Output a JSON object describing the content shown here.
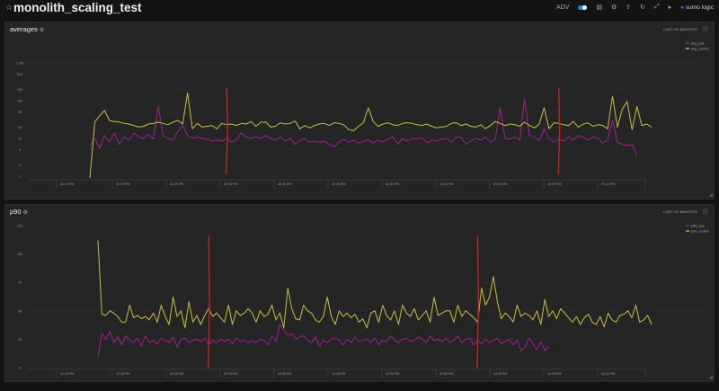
{
  "dashboard": {
    "title": "monolith_scaling_test",
    "favorite_icon": "star-icon",
    "toolbar": {
      "toggle_label": "ADV",
      "items": [
        "layout-icon",
        "gear-icon",
        "share-icon",
        "refresh-icon",
        "fullscreen-icon",
        "live-icon"
      ],
      "brand": "sumo logic"
    }
  },
  "panels": [
    {
      "title": "averages",
      "range_label": "LAST 60 MINUTES",
      "chart_data": {
        "type": "line",
        "y_scale": "log",
        "y_ticks": [
          "1",
          "2",
          "5",
          "10",
          "20",
          "50",
          "100",
          "200",
          "500",
          "1,000"
        ],
        "x_ticks": [
          "02:20 PM",
          "02:25 PM",
          "02:30 PM",
          "02:35 PM",
          "02:40 PM",
          "02:45 PM",
          "02:50 PM",
          "02:55 PM",
          "03:00 PM",
          "03:05 PM",
          "03:10 PM",
          "03:15 PM"
        ],
        "colors": {
          "avg_test": "#a0209a",
          "avg_control": "#c8bf3f",
          "marker": "#d42020"
        },
        "legend": [
          {
            "name": "avg_test",
            "color": "#a0209a"
          },
          {
            "name": "avg_control",
            "color": "#c8bf3f"
          }
        ],
        "series": [
          {
            "name": "avg_test",
            "values": [
              6.5,
              10,
              5.5,
              12,
              8,
              14,
              7,
              11,
              9,
              14,
              11,
              10,
              13,
              9.5,
              70,
              12,
              10,
              9,
              15,
              22,
              12,
              10,
              11,
              10,
              9.5,
              8.5,
              9,
              8.5,
              10,
              8,
              9,
              14,
              11,
              10,
              11,
              10,
              12,
              10,
              9,
              11,
              8.5,
              10,
              7,
              9,
              10,
              8,
              8.5,
              8,
              8.5,
              7,
              6,
              8,
              9.5,
              8,
              9,
              7.5,
              8.5,
              9,
              7.5,
              9,
              8,
              9.5,
              11,
              7,
              10,
              8.5,
              10,
              9.5,
              10.5,
              7.5,
              9,
              8.5,
              9.5,
              10,
              8,
              11,
              10.5,
              7,
              8.5,
              10,
              9,
              11,
              8,
              9.5,
              65,
              10,
              9.5,
              11,
              9,
              110,
              12,
              11,
              8.5,
              18,
              10,
              8,
              9.5,
              8.5,
              11,
              9,
              12,
              10.5,
              9,
              11,
              10,
              7.5,
              9,
              30,
              8,
              7,
              6.5,
              7,
              3.5
            ]
          },
          {
            "name": "avg_control",
            "values": [
              0.9,
              27,
              40,
              55,
              30,
              28,
              27,
              25,
              24,
              22,
              20,
              21,
              24,
              25,
              27,
              25,
              23,
              27,
              30,
              24,
              160,
              18,
              25,
              20,
              21,
              22,
              18,
              25,
              23,
              24,
              22,
              25,
              24,
              28,
              21,
              27,
              27,
              20,
              21,
              26,
              24,
              25,
              29,
              18,
              22,
              19,
              22,
              24,
              25,
              22,
              26,
              25,
              23,
              17,
              16,
              21,
              26,
              65,
              28,
              21,
              24,
              26,
              23,
              22,
              25,
              26,
              25,
              23,
              22,
              24,
              21,
              19,
              20,
              21,
              25,
              26,
              22,
              24,
              21,
              20,
              23,
              18,
              22,
              28,
              25,
              22,
              24,
              23,
              21,
              27,
              22,
              19,
              24,
              65,
              18,
              26,
              25,
              23,
              22,
              28,
              20,
              24,
              26,
              21,
              23,
              22,
              18,
              130,
              20,
              60,
              95,
              17,
              70,
              22,
              24,
              20
            ]
          },
          {
            "name": "marker",
            "style": "vertical",
            "x_index": [
              28,
              96
            ]
          }
        ]
      }
    },
    {
      "title": "p90",
      "range_label": "LAST 60 MINUTES",
      "chart_data": {
        "type": "line",
        "y_ticks": [
          "0",
          "25",
          "50",
          "75",
          "100",
          "125"
        ],
        "ylim": [
          0,
          125
        ],
        "x_ticks": [
          "02:20 PM",
          "02:25 PM",
          "02:30 PM",
          "02:35 PM",
          "02:40 PM",
          "02:45 PM",
          "02:50 PM",
          "02:55 PM",
          "03:00 PM",
          "03:05 PM",
          "03:10 PM",
          "03:15 PM"
        ],
        "colors": {
          "p90_test": "#a0209a",
          "p90_control": "#c8bf3f",
          "marker": "#d42020"
        },
        "legend": [
          {
            "name": "p90_test",
            "color": "#a0209a"
          },
          {
            "name": "p90_control",
            "color": "#c8bf3f"
          }
        ],
        "series": [
          {
            "name": "p90_test",
            "values": [
              10,
              30,
              25,
              32,
              22,
              27,
              20,
              28,
              24,
              22,
              26,
              19,
              28,
              22,
              24,
              21,
              26,
              24,
              22,
              27,
              18,
              25,
              26,
              22,
              24,
              25,
              23,
              26,
              20,
              24,
              22,
              25,
              23,
              25,
              21,
              26,
              23,
              24,
              22,
              24,
              22,
              25,
              24,
              20,
              28,
              23,
              38,
              33,
              28,
              30,
              25,
              27,
              28,
              24,
              22,
              27,
              19,
              24,
              22,
              25,
              26,
              24,
              20,
              25,
              22,
              27,
              23,
              24,
              25,
              22,
              26,
              20,
              24,
              23,
              28,
              24,
              22,
              25,
              26,
              23,
              24,
              27,
              25,
              22,
              28,
              24,
              25,
              23,
              26,
              22,
              24,
              28,
              22,
              25,
              26,
              20,
              24,
              21,
              25,
              22,
              24,
              26,
              21,
              23,
              25,
              20,
              24,
              15,
              18,
              26,
              21,
              16,
              23,
              15,
              19
            ]
          },
          {
            "name": "p90_control",
            "values": [
              112,
              47,
              46,
              50,
              48,
              45,
              40,
              40,
              55,
              44,
              46,
              43,
              45,
              42,
              48,
              40,
              55,
              45,
              38,
              62,
              45,
              50,
              35,
              58,
              40,
              46,
              38,
              46,
              52,
              45,
              48,
              44,
              40,
              55,
              38,
              50,
              46,
              48,
              52,
              48,
              40,
              50,
              45,
              47,
              55,
              42,
              48,
              35,
              70,
              52,
              43,
              42,
              55,
              50,
              48,
              42,
              40,
              45,
              62,
              45,
              38,
              50,
              45,
              48,
              44,
              47,
              40,
              43,
              35,
              48,
              50,
              40,
              55,
              46,
              42,
              50,
              38,
              55,
              48,
              45,
              52,
              42,
              46,
              50,
              40,
              62,
              46,
              48,
              50,
              50,
              40,
              55,
              45,
              50,
              47,
              44,
              40,
              70,
              55,
              62,
              80,
              58,
              43,
              48,
              45,
              40,
              55,
              45,
              48,
              46,
              42,
              50,
              38,
              60,
              45,
              50,
              43,
              52,
              48,
              44,
              40,
              45,
              38,
              44,
              47,
              40,
              38,
              45,
              36,
              48,
              42,
              40,
              46,
              47,
              50,
              44,
              55,
              40,
              42,
              46,
              38
            ]
          },
          {
            "name": "marker",
            "style": "vertical",
            "x_index": [
              28,
              96
            ]
          }
        ]
      }
    }
  ]
}
